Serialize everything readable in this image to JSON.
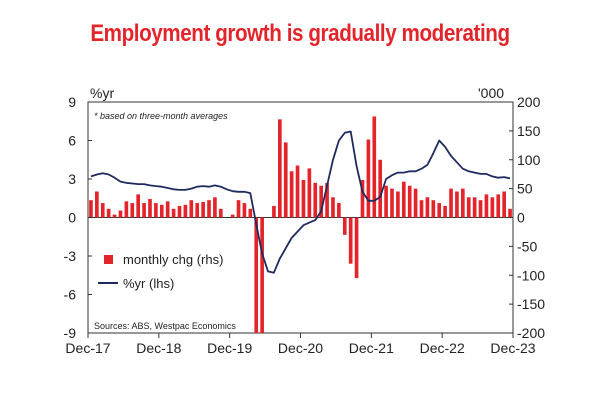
{
  "title": "Employment growth is gradually moderating",
  "chart_data": {
    "type": "bar+line",
    "title": "Employment growth is gradually moderating",
    "left_axis": {
      "label": "%yr",
      "range": [
        -9,
        9
      ],
      "ticks": [
        9,
        6,
        3,
        0,
        -3,
        -6,
        -9
      ]
    },
    "right_axis": {
      "label": "'000",
      "range": [
        -200,
        200
      ],
      "ticks": [
        200,
        150,
        100,
        50,
        0,
        -50,
        -100,
        -150,
        -200
      ]
    },
    "x_ticks": [
      "Dec-17",
      "Dec-18",
      "Dec-19",
      "Dec-20",
      "Dec-21",
      "Dec-22",
      "Dec-23"
    ],
    "annotation": "* based on three-month averages",
    "source": "Sources: ABS, Westpac Economics",
    "legend": [
      {
        "name": "monthly chg (rhs)",
        "kind": "bar"
      },
      {
        "name": "%yr (lhs)",
        "kind": "line"
      }
    ],
    "series": [
      {
        "name": "monthly chg (rhs)",
        "axis": "right",
        "color": "#e3252b",
        "values": [
          30,
          45,
          25,
          15,
          5,
          12,
          28,
          25,
          40,
          25,
          32,
          25,
          22,
          28,
          15,
          20,
          22,
          30,
          25,
          27,
          30,
          35,
          15,
          0,
          5,
          30,
          25,
          15,
          -265,
          -255,
          0,
          20,
          170,
          130,
          80,
          90,
          65,
          85,
          60,
          55,
          60,
          35,
          25,
          -30,
          -80,
          -105,
          65,
          135,
          175,
          100,
          55,
          50,
          45,
          62,
          55,
          50,
          30,
          35,
          30,
          25,
          20,
          50,
          45,
          50,
          35,
          35,
          30,
          40,
          35,
          40,
          45,
          15
        ]
      },
      {
        "name": "%yr (lhs)",
        "axis": "left",
        "color": "#1f2a5e",
        "values": [
          3.2,
          3.35,
          3.45,
          3.35,
          3.1,
          2.8,
          2.7,
          2.65,
          2.6,
          2.6,
          2.5,
          2.45,
          2.4,
          2.3,
          2.2,
          2.15,
          2.15,
          2.25,
          2.4,
          2.45,
          2.4,
          2.5,
          2.4,
          2.2,
          2.05,
          2.0,
          2.0,
          1.9,
          -0.5,
          -2.8,
          -4.2,
          -4.3,
          -3.2,
          -2.4,
          -1.6,
          -1.1,
          -0.6,
          -0.4,
          -0.2,
          0.5,
          2.5,
          4.5,
          6.0,
          6.6,
          6.7,
          4.0,
          2.0,
          1.3,
          1.3,
          1.6,
          3.0,
          3.3,
          3.5,
          3.5,
          3.6,
          3.6,
          3.8,
          4.1,
          5.0,
          6.0,
          5.5,
          4.8,
          4.3,
          3.8,
          3.6,
          3.5,
          3.4,
          3.4,
          3.2,
          3.1,
          3.15,
          3.05
        ]
      }
    ]
  }
}
